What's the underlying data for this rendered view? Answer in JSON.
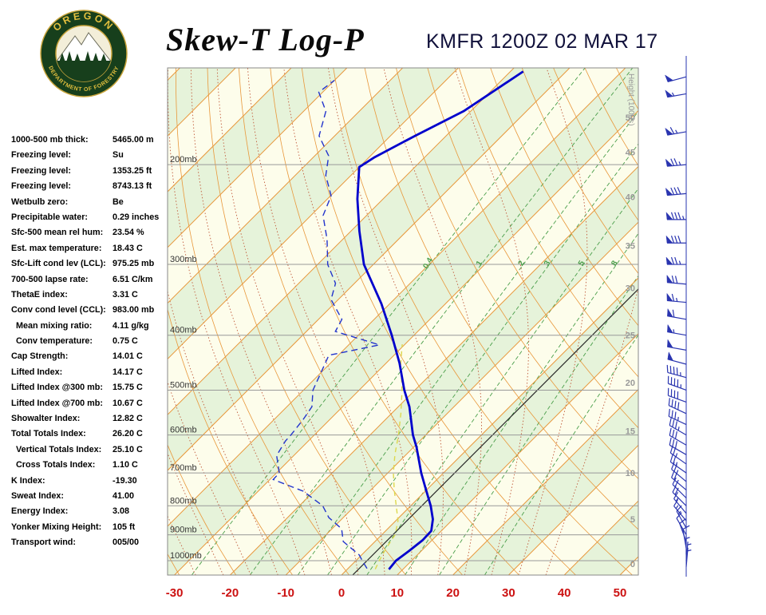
{
  "header": {
    "title": "Skew-T Log-P",
    "station_line": "KMFR 1200Z 02 MAR 17",
    "logo": {
      "top_text": "OREGON",
      "bottom_text": "DEPARTMENT OF FORESTRY"
    }
  },
  "stats": [
    {
      "label": "1000-500 mb thick:",
      "value": "5465.00 m"
    },
    {
      "label": "Freezing level:",
      "value": "Su"
    },
    {
      "label": "Freezing level:",
      "value": "1353.25 ft"
    },
    {
      "label": "Freezing level:",
      "value": "8743.13 ft"
    },
    {
      "label": "Wetbulb zero:",
      "value": "Be"
    },
    {
      "label": "Precipitable water:",
      "value": "0.29 inches"
    },
    {
      "label": "Sfc-500 mean rel hum:",
      "value": "23.54 %"
    },
    {
      "label": "Est. max temperature:",
      "value": "18.43 C"
    },
    {
      "label": "Sfc-Lift cond lev (LCL):",
      "value": "975.25 mb"
    },
    {
      "label": "700-500 lapse rate:",
      "value": "6.51 C/km"
    },
    {
      "label": "ThetaE index:",
      "value": "3.31 C"
    },
    {
      "label": "Conv cond level (CCL):",
      "value": "983.00 mb"
    },
    {
      "label": "Mean mixing ratio:",
      "value": "4.11 g/kg",
      "indent": true
    },
    {
      "label": "Conv temperature:",
      "value": "0.75 C",
      "indent": true
    },
    {
      "label": "Cap Strength:",
      "value": "14.01 C"
    },
    {
      "label": "Lifted Index:",
      "value": "14.17 C"
    },
    {
      "label": "Lifted Index @300 mb:",
      "value": "15.75 C"
    },
    {
      "label": "Lifted Index @700 mb:",
      "value": "10.67 C"
    },
    {
      "label": "Showalter Index:",
      "value": "12.82 C"
    },
    {
      "label": "Total Totals Index:",
      "value": "26.20 C"
    },
    {
      "label": "Vertical Totals Index:",
      "value": "25.10 C",
      "indent": true
    },
    {
      "label": "Cross Totals Index:",
      "value": "1.10 C",
      "indent": true
    },
    {
      "label": "K Index:",
      "value": "-19.30"
    },
    {
      "label": "Sweat Index:",
      "value": "41.00"
    },
    {
      "label": "Energy Index:",
      "value": "3.08"
    },
    {
      "label": "Yonker Mixing Height:",
      "value": "105 ft"
    },
    {
      "label": "Transport wind:",
      "value": "005/00"
    }
  ],
  "chart_data": {
    "type": "line",
    "title": "Skew-T Log-P sounding",
    "pressure_range": [
      135,
      1060
    ],
    "x_axis": {
      "unit": "C",
      "ticks": [
        -30,
        -20,
        -10,
        0,
        10,
        20,
        30,
        40,
        50
      ]
    },
    "pressure_labels": [
      {
        "t": "200mb",
        "p": 200
      },
      {
        "t": "300mb",
        "p": 300
      },
      {
        "t": "400mb",
        "p": 400
      },
      {
        "t": "500mb",
        "p": 500
      },
      {
        "t": "600mb",
        "p": 600
      },
      {
        "t": "700mb",
        "p": 700
      },
      {
        "t": "800mb",
        "p": 800
      },
      {
        "t": "900mb",
        "p": 900
      },
      {
        "t": "1000mb",
        "p": 1000
      }
    ],
    "height_scale": {
      "title": "Height (1000s)",
      "labels": [
        {
          "t": "50",
          "p": 165
        },
        {
          "t": "45",
          "p": 190
        },
        {
          "t": "40",
          "p": 228
        },
        {
          "t": "35",
          "p": 278
        },
        {
          "t": "30",
          "p": 330
        },
        {
          "t": "25",
          "p": 400
        },
        {
          "t": "20",
          "p": 485
        },
        {
          "t": "15",
          "p": 590
        },
        {
          "t": "10",
          "p": 700
        },
        {
          "t": "5",
          "p": 845
        },
        {
          "t": "0",
          "p": 1013
        }
      ]
    },
    "isotherms": {
      "min": -120,
      "max": 50,
      "step": 10
    },
    "dry_adiabats": {
      "min_k": 230,
      "max_k": 410,
      "step": 10
    },
    "moist_adiabats": {
      "min_c": -35,
      "max_c": 35,
      "step": 5
    },
    "mixing_ratio_lines": [
      0.4,
      1,
      2,
      3,
      5,
      8,
      12,
      20
    ],
    "mixing_ratio_labeled": [
      "0.4",
      "1",
      "2",
      "3",
      "5",
      "8"
    ],
    "mixing_ratio_label_pressure": 300,
    "reference_line_t": 2,
    "temp_profile": [
      [
        1036,
        7.5
      ],
      [
        1000,
        7.2
      ],
      [
        960,
        7.8
      ],
      [
        920,
        8.3
      ],
      [
        886,
        8.2
      ],
      [
        845,
        6.4
      ],
      [
        800,
        3.6
      ],
      [
        742,
        -0.7
      ],
      [
        700,
        -4.0
      ],
      [
        630,
        -9.5
      ],
      [
        600,
        -12.3
      ],
      [
        535,
        -18.0
      ],
      [
        500,
        -21.9
      ],
      [
        448,
        -27.6
      ],
      [
        400,
        -34.0
      ],
      [
        352,
        -41.5
      ],
      [
        300,
        -51.7
      ],
      [
        262,
        -58.5
      ],
      [
        230,
        -64.6
      ],
      [
        202,
        -70.0
      ],
      [
        194,
        -69.0
      ],
      [
        178,
        -65.6
      ],
      [
        161,
        -61.3
      ],
      [
        137,
        -57.7
      ]
    ],
    "dewpoint_profile": [
      [
        1032,
        3.4
      ],
      [
        1005,
        1.5
      ],
      [
        977,
        -0.4
      ],
      [
        925,
        -5.7
      ],
      [
        878,
        -8.3
      ],
      [
        839,
        -12.6
      ],
      [
        800,
        -15.8
      ],
      [
        754,
        -21.9
      ],
      [
        719,
        -29.4
      ],
      [
        700,
        -29.5
      ],
      [
        652,
        -33.1
      ],
      [
        615,
        -34.1
      ],
      [
        600,
        -34.2
      ],
      [
        563,
        -34.8
      ],
      [
        535,
        -35.5
      ],
      [
        500,
        -38.3
      ],
      [
        456,
        -40.5
      ],
      [
        434,
        -41.7
      ],
      [
        416,
        -34.5
      ],
      [
        394,
        -44.8
      ],
      [
        375,
        -45.8
      ],
      [
        346,
        -51.3
      ],
      [
        324,
        -53.4
      ],
      [
        300,
        -58.2
      ],
      [
        271,
        -62.8
      ],
      [
        246,
        -67.8
      ],
      [
        227,
        -69.9
      ],
      [
        209,
        -74.5
      ],
      [
        193,
        -77.5
      ],
      [
        178,
        -82.8
      ],
      [
        161,
        -86.0
      ],
      [
        149,
        -90.7
      ],
      [
        142,
        -90.0
      ]
    ],
    "wetbulb_profile": [
      [
        1035,
        5.0
      ],
      [
        1000,
        4.2
      ],
      [
        950,
        3.2
      ],
      [
        900,
        2.4
      ],
      [
        850,
        0.4
      ],
      [
        800,
        -2.6
      ],
      [
        750,
        -5.8
      ],
      [
        700,
        -9.0
      ],
      [
        650,
        -12.0
      ],
      [
        600,
        -14.9
      ],
      [
        550,
        -18.3
      ],
      [
        500,
        -22.3
      ],
      [
        450,
        -27.2
      ],
      [
        415,
        -30.5
      ]
    ],
    "winds": [
      [
        1025,
        5,
        5
      ],
      [
        1000,
        5,
        5
      ],
      [
        975,
        360,
        5
      ],
      [
        950,
        350,
        10
      ],
      [
        925,
        340,
        10
      ],
      [
        900,
        330,
        10
      ],
      [
        875,
        330,
        15
      ],
      [
        850,
        320,
        15
      ],
      [
        825,
        320,
        15
      ],
      [
        800,
        315,
        20
      ],
      [
        775,
        315,
        20
      ],
      [
        750,
        310,
        20
      ],
      [
        725,
        310,
        25
      ],
      [
        700,
        305,
        25
      ],
      [
        675,
        305,
        25
      ],
      [
        650,
        300,
        30
      ],
      [
        625,
        300,
        30
      ],
      [
        600,
        300,
        35
      ],
      [
        575,
        295,
        35
      ],
      [
        550,
        295,
        40
      ],
      [
        525,
        290,
        40
      ],
      [
        500,
        290,
        45
      ],
      [
        475,
        285,
        45
      ],
      [
        450,
        285,
        50
      ],
      [
        425,
        280,
        50
      ],
      [
        400,
        280,
        55
      ],
      [
        375,
        280,
        60
      ],
      [
        350,
        275,
        65
      ],
      [
        325,
        275,
        70
      ],
      [
        300,
        270,
        75
      ],
      [
        275,
        270,
        80
      ],
      [
        250,
        270,
        85
      ],
      [
        225,
        265,
        80
      ],
      [
        200,
        265,
        75
      ],
      [
        175,
        260,
        65
      ],
      [
        150,
        260,
        55
      ],
      [
        140,
        255,
        50
      ]
    ],
    "colors": {
      "temp": "#0000cc",
      "dewpoint": "#2233cc",
      "wetbulb": "#ddd84e",
      "isotherm": "#e8973a",
      "adiabat": "#e8973a",
      "moist": "#c05a3a",
      "mixratio": "#4a9e4a",
      "band_green": "#e6f3da",
      "band_cream": "#fdfdeb",
      "pressure_line": "#999999",
      "axis_red": "#cc1111",
      "wind": "#2a35b0",
      "height_label": "#999999",
      "reference": "#222222",
      "border": "#888888"
    }
  }
}
